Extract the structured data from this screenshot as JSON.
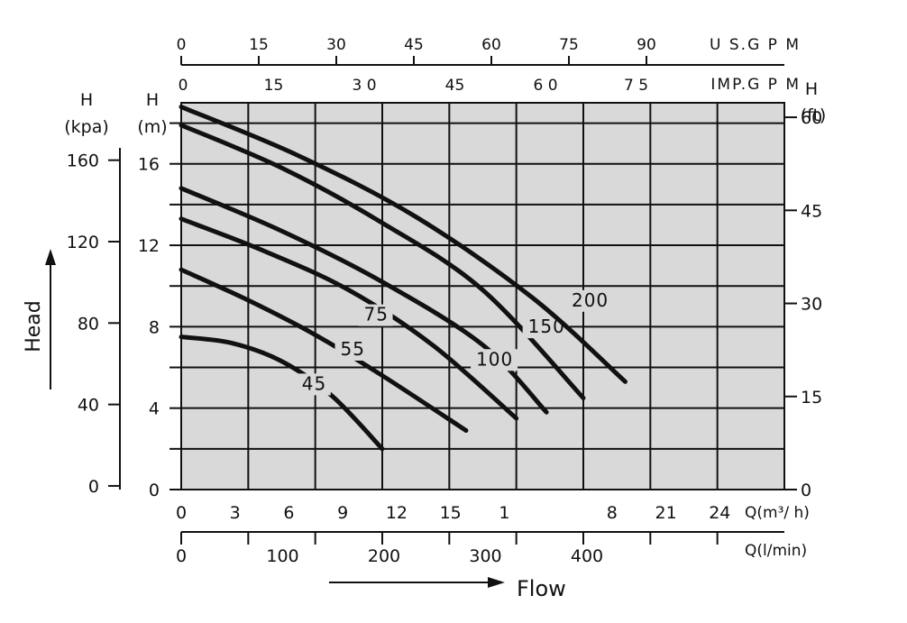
{
  "chart_data": {
    "type": "line",
    "xlabel": "Flow",
    "ylabel": "Head",
    "xlim": [
      0,
      36
    ],
    "ylim": [
      0,
      19
    ],
    "grid": true,
    "plot_color": "#d9d9d9",
    "line_color": "#111111",
    "x_ticks_m3h": [
      "0",
      "3",
      "6",
      "9",
      "12",
      "15",
      "1",
      "",
      "8",
      "21",
      "24",
      ""
    ],
    "x_unit_m3h": "Q(m³/ h)",
    "x_ticks_lmin": [
      "0",
      "100",
      "200",
      "300",
      "400"
    ],
    "x_unit_lmin": "Q(l/min)",
    "top_usgpm_ticks": [
      "0",
      "15",
      "30",
      "45",
      "60",
      "75",
      "90"
    ],
    "top_usgpm_label": "U S.G P M",
    "top_impgpm_ticks": [
      "0",
      "15",
      "3 0",
      "45",
      "6 0",
      "7 5"
    ],
    "top_impgpm_label": "IMP.G P M",
    "left_m_title": "H",
    "left_m_unit": "(m)",
    "left_m_ticks": [
      "0",
      "4",
      "8",
      "12",
      "16"
    ],
    "left_kpa_title": "H",
    "left_kpa_unit": "(kpa)",
    "left_kpa_ticks": [
      "0",
      "40",
      "80",
      "120",
      "160"
    ],
    "right_ft_title": "H",
    "right_ft_unit": "(ft)",
    "right_ft_ticks": [
      "0",
      "15",
      "30",
      "45",
      "60"
    ],
    "series": [
      {
        "name": "45",
        "points": [
          [
            0,
            7.5
          ],
          [
            3,
            7.2
          ],
          [
            6,
            6.3
          ],
          [
            9,
            4.6
          ],
          [
            12,
            2.0
          ]
        ]
      },
      {
        "name": "55",
        "points": [
          [
            0,
            10.8
          ],
          [
            4,
            9.3
          ],
          [
            8,
            7.6
          ],
          [
            12,
            5.6
          ],
          [
            17,
            2.9
          ]
        ]
      },
      {
        "name": "75",
        "points": [
          [
            0,
            13.3
          ],
          [
            5,
            11.7
          ],
          [
            10,
            9.8
          ],
          [
            15,
            7.1
          ],
          [
            20,
            3.5
          ]
        ]
      },
      {
        "name": "100",
        "points": [
          [
            0,
            14.8
          ],
          [
            6,
            12.7
          ],
          [
            12,
            10.2
          ],
          [
            18,
            7.1
          ],
          [
            21.8,
            3.8
          ]
        ]
      },
      {
        "name": "150",
        "points": [
          [
            0,
            17.9
          ],
          [
            6,
            15.8
          ],
          [
            12,
            13.1
          ],
          [
            18,
            9.8
          ],
          [
            24,
            4.5
          ]
        ]
      },
      {
        "name": "200",
        "points": [
          [
            0,
            18.8
          ],
          [
            7,
            16.4
          ],
          [
            14,
            13.4
          ],
          [
            21,
            9.4
          ],
          [
            26.5,
            5.3
          ]
        ]
      }
    ]
  }
}
